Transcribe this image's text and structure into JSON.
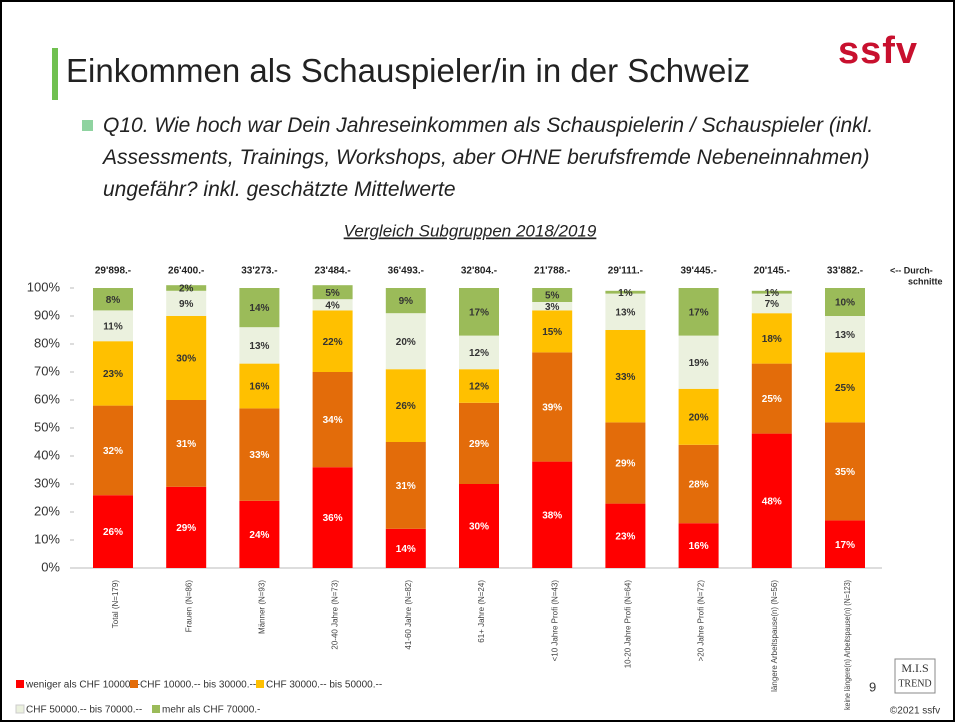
{
  "logo": "ssfv",
  "page_number": "9",
  "mis_logo": [
    "M.I.S",
    "TREND"
  ],
  "copyright": "©2021 ssfv",
  "chart_data": {
    "type": "stacked_bar",
    "title": "Einkommen als Schauspieler/in in der Schweiz",
    "question": "Q10. Wie hoch war Dein Jahreseinkommen als Schauspielerin / Schauspieler (inkl. Assessments, Trainings, Workshops, aber OHNE berufsfremde Nebeneinnahmen) ungefähr? inkl. geschätzte Mittelwerte",
    "subtitle": "Vergleich Subgruppen 2018/2019",
    "categories": [
      "Total (N=179)",
      "Frauen (N=86)",
      "Männer (N=93)",
      "20-40 Jahre (N=73)",
      "41-60 Jahre (N=82)",
      "61+ Jahre (N=24)",
      "<10 Jahre Profi (N=43)",
      "10-20 Jahre Profi (N=64)",
      ">20 Jahre Profi (N=72)",
      "längere Arbeitspause(n) (N=56)",
      "keine längere(n) Arbeitspause(n) (N=123)"
    ],
    "averages": [
      29898,
      26400,
      33273,
      23484,
      36493,
      32804,
      21788,
      29111,
      39445,
      20145,
      33882
    ],
    "average_labels": [
      "29'898.-",
      "26'400.-",
      "33'273.-",
      "23'484.-",
      "36'493.-",
      "32'804.-",
      "21'788.-",
      "29'111.-",
      "39'445.-",
      "20'145.-",
      "33'882.-"
    ],
    "average_note": [
      "<-- Durch-",
      "schnitte"
    ],
    "series": [
      {
        "name": "weniger als CHF 10000.--",
        "color": "#ff0000",
        "values": [
          26,
          29,
          24,
          36,
          14,
          30,
          38,
          23,
          16,
          48,
          17
        ],
        "value_labels": [
          "26%",
          "29%",
          "24%",
          "36%",
          "14%",
          "30%",
          "38%",
          "23%",
          "16%",
          "48%",
          "17%"
        ]
      },
      {
        "name": "CHF 10000.-- bis 30000.--",
        "color": "#e36c0a",
        "values": [
          32,
          31,
          33,
          34,
          31,
          29,
          39,
          29,
          28,
          25,
          35
        ],
        "value_labels": [
          "32%",
          "31%",
          "33%",
          "34%",
          "31%",
          "29%",
          "39%",
          "29%",
          "28%",
          "25%",
          "35%"
        ]
      },
      {
        "name": "CHF 30000.-- bis 50000.--",
        "color": "#ffc000",
        "values": [
          23,
          30,
          16,
          22,
          26,
          12,
          15,
          33,
          20,
          18,
          25
        ],
        "value_labels": [
          "23%",
          "30%",
          "16%",
          "22%",
          "26%",
          "12%",
          "15%",
          "33%",
          "20%",
          "18%",
          "25%"
        ]
      },
      {
        "name": "CHF 50000.-- bis 70000.--",
        "color": "#ebf1de",
        "values": [
          11,
          9,
          13,
          4,
          20,
          12,
          3,
          13,
          19,
          7,
          13
        ],
        "value_labels": [
          "11%",
          "9%",
          "13%",
          "4%",
          "20%",
          "12%",
          "3%",
          "13%",
          "19%",
          "7%",
          "13%"
        ]
      },
      {
        "name": "mehr als CHF 70000.-",
        "color": "#9bbb59",
        "values": [
          8,
          2,
          14,
          5,
          9,
          17,
          5,
          1,
          17,
          1,
          10
        ],
        "value_labels": [
          "8%",
          "2%",
          "14%",
          "5%",
          "9%",
          "17%",
          "5%",
          "1%",
          "17%",
          "1%",
          "10%"
        ]
      }
    ],
    "ylim": [
      0,
      100
    ],
    "yticks": [
      {
        "value": 0,
        "label": "0%"
      },
      {
        "value": 10,
        "label": "10%"
      },
      {
        "value": 20,
        "label": "20%"
      },
      {
        "value": 30,
        "label": "30%"
      },
      {
        "value": 40,
        "label": "40%"
      },
      {
        "value": 50,
        "label": "50%"
      },
      {
        "value": 60,
        "label": "60%"
      },
      {
        "value": 70,
        "label": "70%"
      },
      {
        "value": 80,
        "label": "80%"
      },
      {
        "value": 90,
        "label": "90%"
      },
      {
        "value": 100,
        "label": "100%"
      }
    ]
  }
}
